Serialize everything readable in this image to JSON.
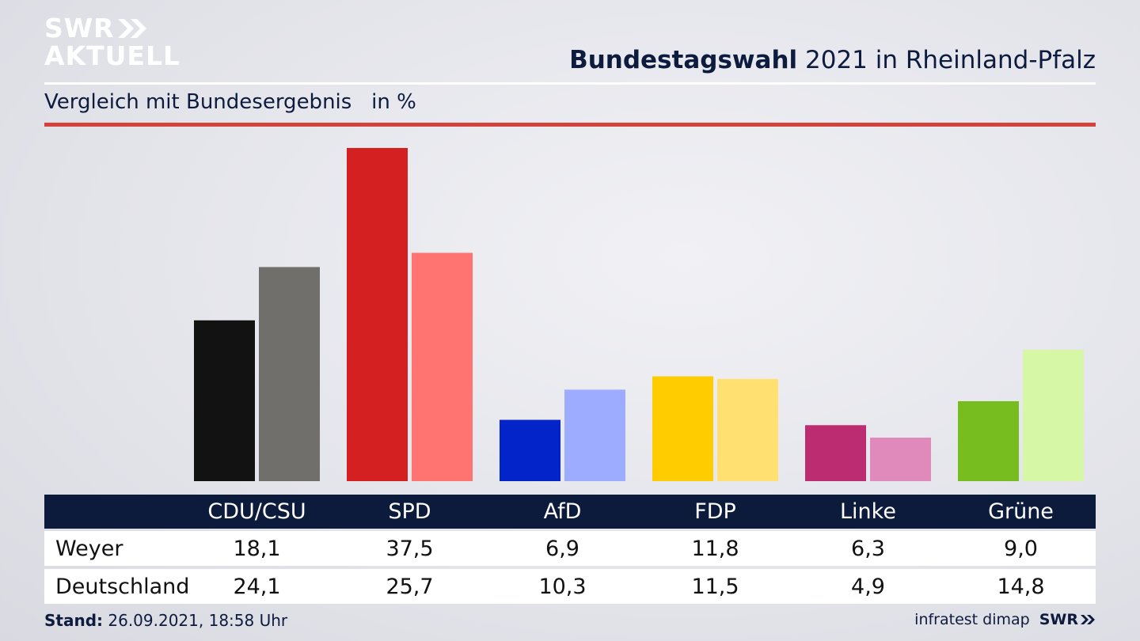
{
  "header": {
    "logo_line1": "SWR",
    "logo_line2": "AKTUELL",
    "title_bold": "Bundestagswahl",
    "title_rest": " 2021 in Rheinland-Pfalz",
    "subtitle": "Vergleich mit Bundesergebnis",
    "unit": "in %"
  },
  "chart_data": {
    "type": "bar",
    "categories": [
      "CDU/CSU",
      "SPD",
      "AfD",
      "FDP",
      "Linke",
      "Grüne"
    ],
    "series": [
      {
        "name": "Weyer",
        "values": [
          18.1,
          37.5,
          6.9,
          11.8,
          6.3,
          9.0
        ]
      },
      {
        "name": "Deutschland",
        "values": [
          24.1,
          25.7,
          10.3,
          11.5,
          4.9,
          14.8
        ]
      }
    ],
    "colors": {
      "Weyer": [
        "#121212",
        "#d42020",
        "#0324c8",
        "#ffcc00",
        "#bb2c70",
        "#78bd1f"
      ],
      "Deutschland": [
        "#716f6c",
        "#ff7470",
        "#9eacff",
        "#ffe070",
        "#df8aba",
        "#d6f8a6"
      ]
    },
    "ylim": [
      0,
      37.5
    ],
    "grid": false
  },
  "table": {
    "headers": [
      "CDU/CSU",
      "SPD",
      "AfD",
      "FDP",
      "Linke",
      "Grüne"
    ],
    "rows": [
      {
        "label": "Weyer",
        "values": [
          "18,1",
          "37,5",
          "6,9",
          "11,8",
          "6,3",
          "9,0"
        ]
      },
      {
        "label": "Deutschland",
        "values": [
          "24,1",
          "25,7",
          "10,3",
          "11,5",
          "4,9",
          "14,8"
        ]
      }
    ]
  },
  "footer": {
    "stand_label": "Stand:",
    "stand_value": " 26.09.2021, 18:58 Uhr",
    "source": "infratest dimap",
    "brand": "SWR"
  },
  "colors": {
    "navy": "#0c1a3c",
    "accent_red": "#d4433b"
  }
}
